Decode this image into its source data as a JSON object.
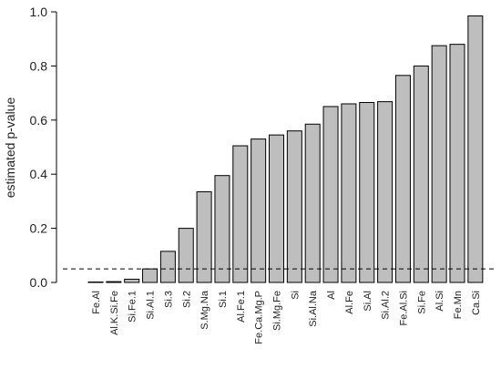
{
  "chart_data": {
    "type": "bar",
    "title": "",
    "xlabel": "",
    "ylabel": "estimated p-value",
    "ylim": [
      0,
      1.0
    ],
    "yticks": [
      0.0,
      0.2,
      0.4,
      0.6,
      0.8,
      1.0
    ],
    "ytick_labels": [
      "0.0",
      "0.2",
      "0.4",
      "0.6",
      "0.8",
      "1.0"
    ],
    "categories": [
      "Fe.Al",
      "Al.K.Si.Fe",
      "Si.Fe.1",
      "Si.Al.1",
      "Si.3",
      "Si.2",
      "S.Mg.Na",
      "Si.1",
      "Al.Fe.1",
      "Fe.Ca.Mg.P",
      "Si.Mg.Fe",
      "Si",
      "Si.Al.Na",
      "Al",
      "Al.Fe",
      "Si.Al",
      "Si.Al.2",
      "Fe.Al.Si",
      "Si.Fe",
      "Al.Si",
      "Fe.Mn",
      "Ca.Si"
    ],
    "values": [
      0.0,
      0.003,
      0.012,
      0.05,
      0.115,
      0.2,
      0.335,
      0.395,
      0.505,
      0.53,
      0.545,
      0.56,
      0.585,
      0.65,
      0.66,
      0.665,
      0.668,
      0.765,
      0.8,
      0.875,
      0.88,
      0.985
    ],
    "reference_line": {
      "y": 0.05,
      "style": "dashed"
    },
    "bar_color": "#bebebe",
    "bar_edge_color": "#000000",
    "grid": false,
    "legend": "none"
  }
}
